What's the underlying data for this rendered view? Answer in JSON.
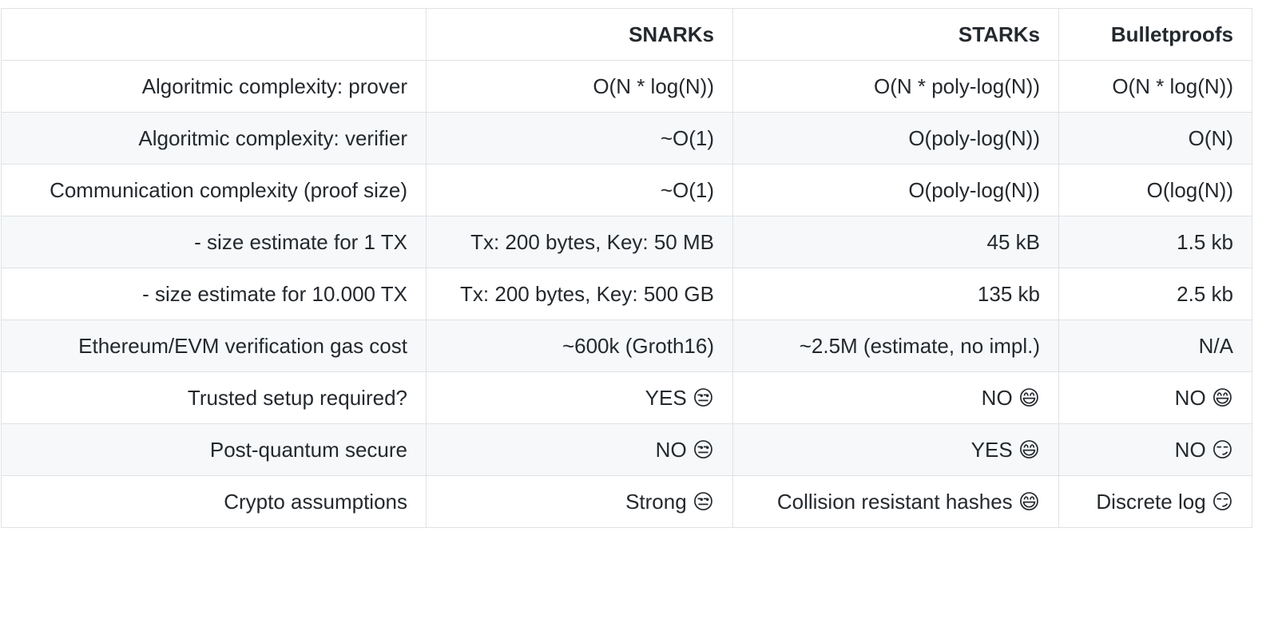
{
  "table": {
    "header": [
      "SNARKs",
      "STARKs",
      "Bulletproofs"
    ],
    "rows": [
      [
        "Algoritmic complexity: prover",
        "O(N * log(N))",
        "O(N * poly-log(N))",
        "O(N * log(N))"
      ],
      [
        "Algoritmic complexity: verifier",
        "~O(1)",
        "O(poly-log(N))",
        "O(N)"
      ],
      [
        "Communication complexity (proof size)",
        "~O(1)",
        "O(poly-log(N))",
        "O(log(N))"
      ],
      [
        "- size estimate for 1 TX",
        "Tx: 200 bytes, Key: 50 MB",
        "45 kB",
        "1.5 kb"
      ],
      [
        "- size estimate for 10.000 TX",
        "Tx: 200 bytes, Key: 500 GB",
        "135 kb",
        "2.5 kb"
      ],
      [
        "Ethereum/EVM verification gas cost",
        "~600k (Groth16)",
        "~2.5M (estimate, no impl.)",
        "N/A"
      ],
      [
        "Trusted setup required?",
        "YES 😒",
        "NO 😄",
        "NO 😄"
      ],
      [
        "Post-quantum secure",
        "NO 😒",
        "YES 😄",
        "NO 😏"
      ],
      [
        "Crypto assumptions",
        "Strong 😒",
        "Collision resistant hashes 😄",
        "Discrete log 😏"
      ]
    ]
  }
}
